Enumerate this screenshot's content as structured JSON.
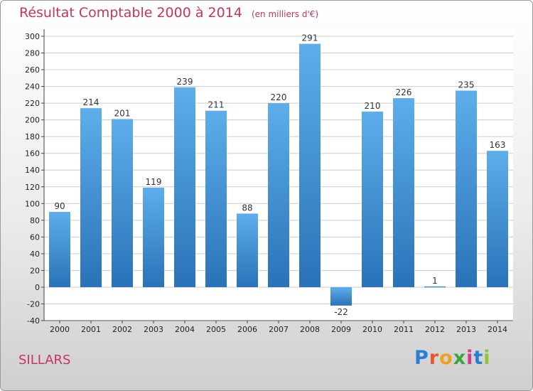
{
  "header": {
    "title": "Résultat Comptable 2000 à 2014",
    "subtitle": "(en milliers d'€)"
  },
  "location": {
    "name": "SILLARS"
  },
  "brand": {
    "logo_letters": [
      {
        "ch": "P",
        "color": "#2a7fd4"
      },
      {
        "ch": "r",
        "color": "#e8572a"
      },
      {
        "ch": "o",
        "color": "#f0a020"
      },
      {
        "ch": "x",
        "color": "#3aa63a"
      },
      {
        "ch": "i",
        "color": "#d13b8a"
      },
      {
        "ch": "t",
        "color": "#2a7fd4"
      },
      {
        "ch": "i",
        "color": "#8cc43c"
      }
    ]
  },
  "chart_data": {
    "type": "bar",
    "title": "Résultat Comptable 2000 à 2014",
    "subtitle": "(en milliers d'€)",
    "xlabel": "",
    "ylabel": "",
    "categories": [
      "2000",
      "2001",
      "2002",
      "2003",
      "2004",
      "2005",
      "2006",
      "2007",
      "2008",
      "2009",
      "2010",
      "2011",
      "2012",
      "2013",
      "2014"
    ],
    "values": [
      90,
      214,
      201,
      119,
      239,
      211,
      88,
      220,
      291,
      -22,
      210,
      226,
      1,
      235,
      163
    ],
    "ylim": [
      -40,
      300
    ],
    "yticks": [
      -40,
      -20,
      0,
      20,
      40,
      60,
      80,
      100,
      120,
      140,
      160,
      180,
      200,
      220,
      240,
      260,
      280,
      300
    ],
    "grid": true,
    "colors": {
      "bar": "#3d8fd6",
      "bar_light": "#5daeea",
      "bar_dark": "#2a72b8",
      "grid": "#cccccc"
    }
  }
}
